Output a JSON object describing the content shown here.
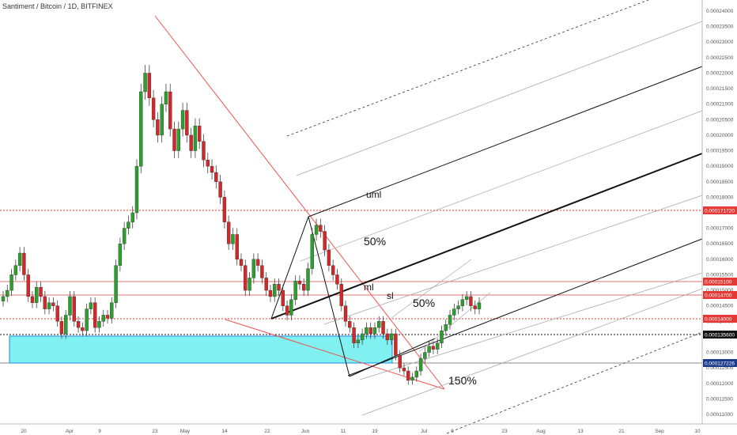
{
  "symbol": {
    "pair": "Santiment / Bitcoin",
    "interval": "1D",
    "exchange": "BITFINEX"
  },
  "price_ticks": [
    "0.00024000",
    "0.00023500",
    "0.00023000",
    "0.00022500",
    "0.00022000",
    "0.00021500",
    "0.00021000",
    "0.00020500",
    "0.00020000",
    "0.00019500",
    "0.00019000",
    "0.00018500",
    "0.00018000",
    "0.00017500",
    "0.00017000",
    "0.00016500",
    "0.00016000",
    "0.00015500",
    "0.00015000",
    "0.00014500",
    "0.00014000",
    "0.00013500",
    "0.00013000",
    "0.00012500",
    "0.00012000",
    "0.00011500",
    "0.00011000"
  ],
  "date_ticks": [
    "20",
    "Apr",
    "9",
    "23",
    "May",
    "14",
    "22",
    "Jun",
    "11",
    "19",
    "Jul",
    "9",
    "23",
    "Aug",
    "13",
    "21",
    "Sep",
    "10"
  ],
  "chart_data": {
    "type": "candlestick",
    "title": "Santiment / Bitcoin, 1D, BITFINEX",
    "ylim": [
      0.00011,
      0.00024
    ],
    "colors": {
      "up": "#2ca02c",
      "down": "#d62728"
    },
    "series": [
      {
        "values": [
          0.000148,
          0.00015,
          0.000155,
          0.000158,
          0.000162,
          0.000155,
          0.000148,
          0.000146,
          0.000151,
          0.000148,
          0.000144,
          0.000146,
          0.000145,
          0.00014,
          0.000136,
          0.000142,
          0.000148,
          0.00014,
          0.000138,
          0.000137,
          0.000144,
          0.000146,
          0.000138,
          0.00014,
          0.000142,
          0.000141,
          0.000146,
          0.000158,
          0.000165,
          0.00017,
          0.000172,
          0.000175,
          0.00019,
          0.000214,
          0.00022,
          0.000212,
          0.000205,
          0.0002,
          0.00021,
          0.000214,
          0.000202,
          0.000195,
          0.000202,
          0.000208,
          0.0002,
          0.000195,
          0.000203,
          0.000198,
          0.000192,
          0.00019,
          0.000188,
          0.000185,
          0.00018,
          0.000172,
          0.000165,
          0.000168,
          0.00016,
          0.000158,
          0.00015,
          0.000154,
          0.00016,
          0.000158,
          0.000154,
          0.00015,
          0.000148,
          0.000152,
          0.00015,
          0.000145,
          0.000142,
          0.000147,
          0.000153,
          0.000152,
          0.00015,
          0.000157,
          0.000168,
          0.000171,
          0.000169,
          0.000163,
          0.000158,
          0.000155,
          0.000152,
          0.000145,
          0.00014,
          0.000138,
          0.000133,
          0.000134,
          0.000136,
          0.000138,
          0.000136,
          0.000138,
          0.00014,
          0.000136,
          0.000134,
          0.000136,
          0.000129,
          0.000125,
          0.000124,
          0.000121,
          0.000122,
          0.000124,
          0.000128,
          0.00013,
          0.000132,
          0.000131,
          0.000133,
          0.000137,
          0.000139,
          0.000142,
          0.000144,
          0.000145,
          0.000147,
          0.000148,
          0.000145,
          0.000144,
          0.000146
        ]
      }
    ],
    "price_labels": [
      {
        "value": "0.000171720",
        "color": "#e53935"
      },
      {
        "value": "0.00015100",
        "color": "#e53935"
      },
      {
        "value": "0.00014700",
        "color": "#e53935"
      },
      {
        "value": "0.00014000",
        "color": "#e53935"
      },
      {
        "value": "0.000135600",
        "color": "#111111"
      },
      {
        "value": "0.000127226",
        "color": "#1e3a8a"
      }
    ],
    "annotations": [
      "uml",
      "50%",
      "ml",
      "sl",
      "50%",
      "150%"
    ]
  }
}
